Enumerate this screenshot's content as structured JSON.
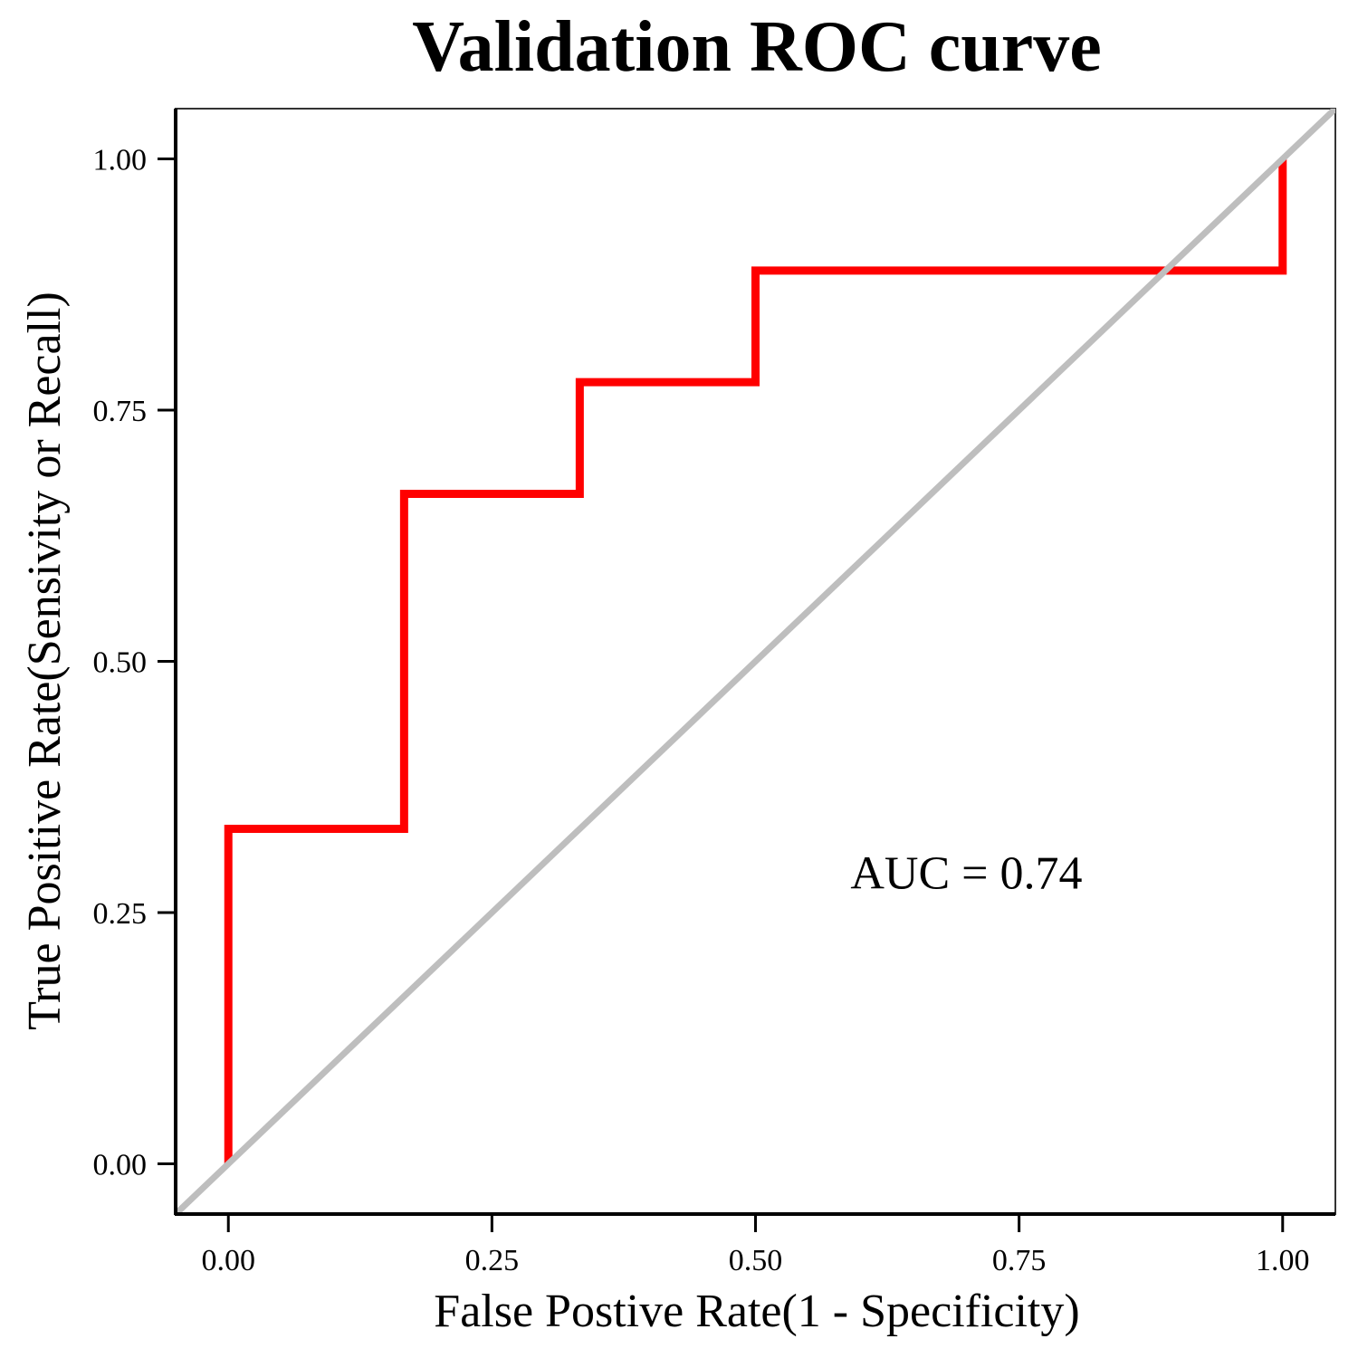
{
  "chart_data": {
    "type": "line",
    "title": "Validation ROC curve",
    "xlabel": "False Postive Rate(1 - Specificity)",
    "ylabel": "True Positive Rate(Sensivity or Recall)",
    "xlim": [
      -0.05,
      1.05
    ],
    "ylim": [
      -0.05,
      1.05
    ],
    "xticks": [
      0,
      0.25,
      0.5,
      0.75,
      1
    ],
    "xtick_labels": [
      "0.00",
      "0.25",
      "0.50",
      "0.75",
      "1.00"
    ],
    "yticks": [
      0,
      0.25,
      0.5,
      0.75,
      1
    ],
    "ytick_labels": [
      "0.00",
      "0.25",
      "0.50",
      "0.75",
      "1.00"
    ],
    "grid": false,
    "series": [
      {
        "color": "#ff0000",
        "step": true,
        "x": [
          0,
          0,
          0.1667,
          0.1667,
          0.3333,
          0.3333,
          0.5,
          0.5,
          1.0,
          1.0
        ],
        "y": [
          0,
          0.3333,
          0.3333,
          0.6667,
          0.6667,
          0.7778,
          0.7778,
          0.8889,
          0.8889,
          1.0
        ]
      },
      {
        "color": "#bebebe",
        "x": [
          -0.05,
          1.05
        ],
        "y": [
          -0.05,
          1.05
        ]
      }
    ],
    "annotations": [
      {
        "text": "AUC = 0.74",
        "x": 0.7,
        "y": 0.29
      }
    ]
  }
}
